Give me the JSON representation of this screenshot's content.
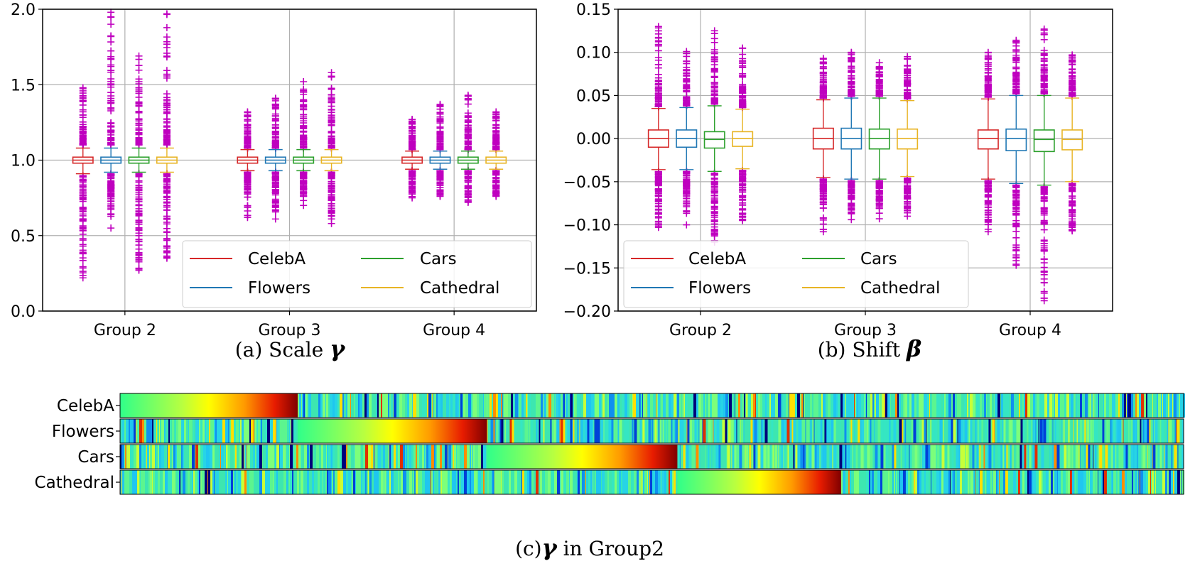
{
  "chart_data": [
    {
      "type": "box",
      "caption": {
        "prefix": "(a) Scale ",
        "symbol": "γ"
      },
      "categories": [
        "Group 2",
        "Group 3",
        "Group 4"
      ],
      "ylim": [
        0.0,
        2.0
      ],
      "yticks": [
        "0.0",
        "0.5",
        "1.0",
        "1.5",
        "2.0"
      ],
      "grid": true,
      "legend": {
        "placement": "lower-right",
        "entries": [
          "CelebA",
          "Cars",
          "Flowers",
          "Cathedral"
        ]
      },
      "series": [
        {
          "name": "CelebA",
          "color": "#d62728",
          "boxes": [
            {
              "whislo": 0.91,
              "q1": 0.98,
              "med": 1.0,
              "q3": 1.02,
              "whishi": 1.08,
              "flier_lo": [
                0.22,
                0.9
              ],
              "flier_hi": [
                1.1,
                1.48
              ]
            },
            {
              "whislo": 0.93,
              "q1": 0.98,
              "med": 1.0,
              "q3": 1.02,
              "whishi": 1.07,
              "flier_lo": [
                0.62,
                0.92
              ],
              "flier_hi": [
                1.08,
                1.32
              ]
            },
            {
              "whislo": 0.94,
              "q1": 0.98,
              "med": 1.0,
              "q3": 1.02,
              "whishi": 1.06,
              "flier_lo": [
                0.75,
                0.93
              ],
              "flier_hi": [
                1.07,
                1.27
              ]
            }
          ]
        },
        {
          "name": "Flowers",
          "color": "#1f77b4",
          "boxes": [
            {
              "whislo": 0.92,
              "q1": 0.98,
              "med": 1.0,
              "q3": 1.02,
              "whishi": 1.08,
              "flier_lo": [
                0.55,
                0.91
              ],
              "flier_hi": [
                1.1,
                1.98
              ]
            },
            {
              "whislo": 0.93,
              "q1": 0.98,
              "med": 1.0,
              "q3": 1.02,
              "whishi": 1.07,
              "flier_lo": [
                0.61,
                0.92
              ],
              "flier_hi": [
                1.08,
                1.41
              ]
            },
            {
              "whislo": 0.94,
              "q1": 0.98,
              "med": 1.0,
              "q3": 1.02,
              "whishi": 1.06,
              "flier_lo": [
                0.76,
                0.93
              ],
              "flier_hi": [
                1.07,
                1.37
              ]
            }
          ]
        },
        {
          "name": "Cars",
          "color": "#2ca02c",
          "boxes": [
            {
              "whislo": 0.92,
              "q1": 0.98,
              "med": 1.0,
              "q3": 1.02,
              "whishi": 1.08,
              "flier_lo": [
                0.27,
                0.91
              ],
              "flier_hi": [
                1.1,
                1.69
              ]
            },
            {
              "whislo": 0.93,
              "q1": 0.98,
              "med": 1.0,
              "q3": 1.02,
              "whishi": 1.07,
              "flier_lo": [
                0.7,
                0.92
              ],
              "flier_hi": [
                1.08,
                1.52
              ]
            },
            {
              "whislo": 0.94,
              "q1": 0.98,
              "med": 1.0,
              "q3": 1.02,
              "whishi": 1.06,
              "flier_lo": [
                0.72,
                0.93
              ],
              "flier_hi": [
                1.07,
                1.43
              ]
            }
          ]
        },
        {
          "name": "Cathedral",
          "color": "#e8b424",
          "boxes": [
            {
              "whislo": 0.92,
              "q1": 0.98,
              "med": 1.0,
              "q3": 1.02,
              "whishi": 1.08,
              "flier_lo": [
                0.35,
                0.91
              ],
              "flier_hi": [
                1.1,
                1.97
              ]
            },
            {
              "whislo": 0.93,
              "q1": 0.98,
              "med": 1.0,
              "q3": 1.02,
              "whishi": 1.07,
              "flier_lo": [
                0.58,
                0.92
              ],
              "flier_hi": [
                1.08,
                1.58
              ]
            },
            {
              "whislo": 0.94,
              "q1": 0.98,
              "med": 1.0,
              "q3": 1.02,
              "whishi": 1.06,
              "flier_lo": [
                0.76,
                0.93
              ],
              "flier_hi": [
                1.07,
                1.32
              ]
            }
          ]
        }
      ],
      "flier_color": "#bf00bf"
    },
    {
      "type": "box",
      "caption": {
        "prefix": "(b) Shift ",
        "symbol": "β"
      },
      "categories": [
        "Group 2",
        "Group 3",
        "Group 4"
      ],
      "ylim": [
        -0.2,
        0.15
      ],
      "yticks": [
        "−0.20",
        "−0.15",
        "−0.10",
        "−0.05",
        "0.00",
        "0.05",
        "0.10",
        "0.15"
      ],
      "grid": true,
      "legend": {
        "placement": "lower-left",
        "entries": [
          "CelebA",
          "Cars",
          "Flowers",
          "Cathedral"
        ]
      },
      "series": [
        {
          "name": "CelebA",
          "color": "#d62728",
          "boxes": [
            {
              "whislo": -0.036,
              "q1": -0.01,
              "med": 0.0,
              "q3": 0.01,
              "whishi": 0.035,
              "flier_lo": [
                -0.103,
                -0.038
              ],
              "flier_hi": [
                0.037,
                0.13
              ]
            },
            {
              "whislo": -0.045,
              "q1": -0.012,
              "med": 0.0,
              "q3": 0.012,
              "whishi": 0.045,
              "flier_lo": [
                -0.108,
                -0.047
              ],
              "flier_hi": [
                0.047,
                0.093
              ]
            },
            {
              "whislo": -0.047,
              "q1": -0.012,
              "med": 0.0,
              "q3": 0.01,
              "whishi": 0.046,
              "flier_lo": [
                -0.108,
                -0.049
              ],
              "flier_hi": [
                0.048,
                0.1
              ]
            }
          ]
        },
        {
          "name": "Flowers",
          "color": "#1f77b4",
          "boxes": [
            {
              "whislo": -0.036,
              "q1": -0.01,
              "med": 0.0,
              "q3": 0.01,
              "whishi": 0.036,
              "flier_lo": [
                -0.1,
                -0.038
              ],
              "flier_hi": [
                0.038,
                0.101
              ]
            },
            {
              "whislo": -0.047,
              "q1": -0.012,
              "med": 0.0,
              "q3": 0.012,
              "whishi": 0.047,
              "flier_lo": [
                -0.094,
                -0.049
              ],
              "flier_hi": [
                0.049,
                0.1
              ]
            },
            {
              "whislo": -0.052,
              "q1": -0.014,
              "med": 0.0,
              "q3": 0.011,
              "whishi": 0.05,
              "flier_lo": [
                -0.147,
                -0.054
              ],
              "flier_hi": [
                0.052,
                0.114
              ]
            }
          ]
        },
        {
          "name": "Cars",
          "color": "#2ca02c",
          "boxes": [
            {
              "whislo": -0.038,
              "q1": -0.011,
              "med": -0.001,
              "q3": 0.008,
              "whishi": 0.038,
              "flier_lo": [
                -0.12,
                -0.04
              ],
              "flier_hi": [
                0.04,
                0.125
              ]
            },
            {
              "whislo": -0.047,
              "q1": -0.012,
              "med": 0.0,
              "q3": 0.011,
              "whishi": 0.047,
              "flier_lo": [
                -0.093,
                -0.049
              ],
              "flier_hi": [
                0.049,
                0.088
              ]
            },
            {
              "whislo": -0.054,
              "q1": -0.015,
              "med": -0.001,
              "q3": 0.01,
              "whishi": 0.05,
              "flier_lo": [
                -0.188,
                -0.056
              ],
              "flier_hi": [
                0.052,
                0.127
              ]
            }
          ]
        },
        {
          "name": "Cathedral",
          "color": "#e8b424",
          "boxes": [
            {
              "whislo": -0.035,
              "q1": -0.009,
              "med": 0.0,
              "q3": 0.008,
              "whishi": 0.034,
              "flier_lo": [
                -0.095,
                -0.037
              ],
              "flier_hi": [
                0.036,
                0.105
              ]
            },
            {
              "whislo": -0.044,
              "q1": -0.012,
              "med": 0.0,
              "q3": 0.011,
              "whishi": 0.044,
              "flier_lo": [
                -0.09,
                -0.046
              ],
              "flier_hi": [
                0.046,
                0.095
              ]
            },
            {
              "whislo": -0.05,
              "q1": -0.013,
              "med": -0.001,
              "q3": 0.01,
              "whishi": 0.047,
              "flier_lo": [
                -0.107,
                -0.052
              ],
              "flier_hi": [
                0.049,
                0.097
              ]
            }
          ]
        }
      ],
      "flier_color": "#bf00bf"
    },
    {
      "type": "heatmap",
      "caption": {
        "prefix": "(c)",
        "symbol": "γ",
        "suffix": "  in Group2"
      },
      "rows": [
        "CelebA",
        "Flowers",
        "Cars",
        "Cathedral"
      ],
      "colormap": "jet",
      "sorted_block": [
        {
          "row": "CelebA",
          "start": 0.0,
          "end": 0.167
        },
        {
          "row": "Flowers",
          "start": 0.167,
          "end": 0.345
        },
        {
          "row": "Cars",
          "start": 0.345,
          "end": 0.524
        },
        {
          "row": "Cathedral",
          "start": 0.524,
          "end": 0.678
        }
      ]
    }
  ]
}
